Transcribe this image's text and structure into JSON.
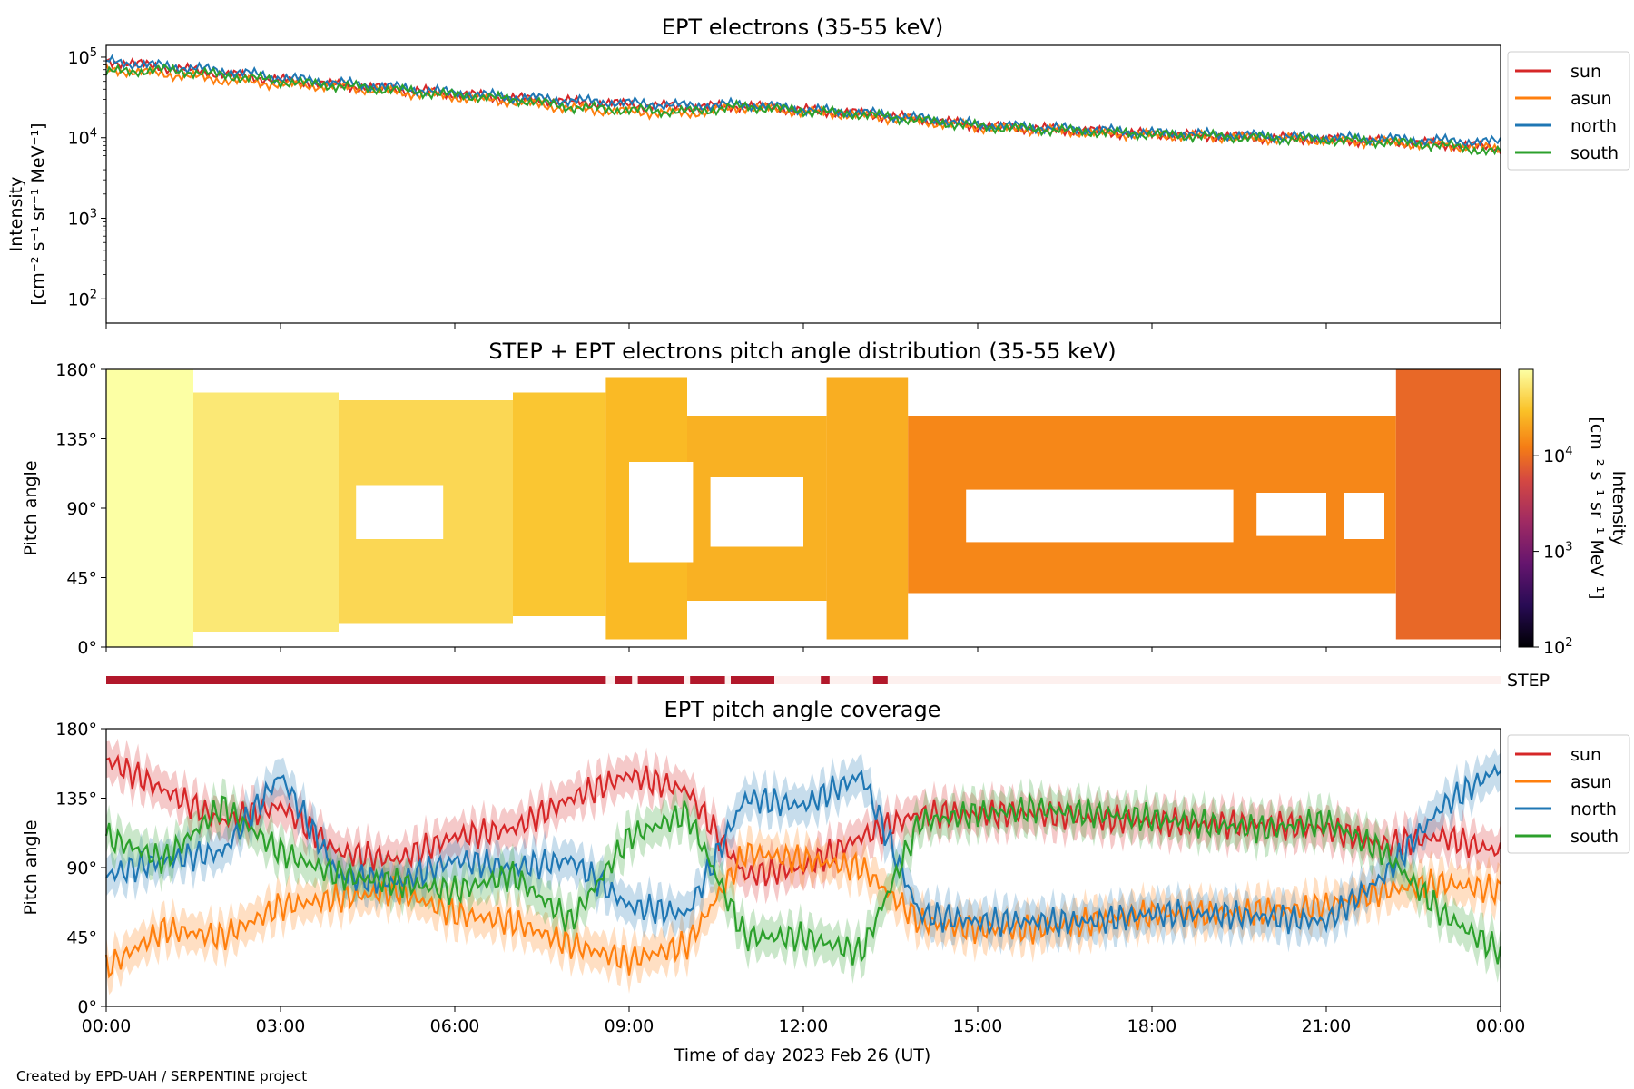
{
  "footer": {
    "credit": "Created by EPD-UAH / SERPENTINE project"
  },
  "chart_data": [
    {
      "type": "line",
      "title": "EPT electrons (35-55 keV)",
      "ylabel_line1": "Intensity",
      "ylabel_line2": "[cm⁻² s⁻¹ sr⁻¹ MeV⁻¹]",
      "yscale": "log",
      "ylim": [
        50,
        140000
      ],
      "y_ticks": [
        100,
        1000,
        10000,
        100000
      ],
      "y_tick_exponents": [
        "2",
        "3",
        "4",
        "5"
      ],
      "x": [
        0,
        1,
        2,
        3,
        4,
        5,
        6,
        7,
        8,
        9,
        10,
        11,
        12,
        13,
        14,
        15,
        16,
        17,
        18,
        19,
        20,
        21,
        22,
        23,
        24
      ],
      "xlim": [
        0,
        24
      ],
      "legend": "right-outside-top",
      "series": [
        {
          "name": "sun",
          "color": "#d62728",
          "values": [
            90000,
            75000,
            62000,
            52000,
            45000,
            40000,
            35000,
            31000,
            28000,
            26000,
            24000,
            25000,
            22000,
            20000,
            17000,
            14000,
            13000,
            12000,
            11000,
            10500,
            10000,
            9500,
            9000,
            8300,
            7500
          ]
        },
        {
          "name": "asun",
          "color": "#ff7f0e",
          "values": [
            70000,
            62000,
            52000,
            46000,
            43000,
            37000,
            32000,
            28000,
            23000,
            21000,
            20000,
            24000,
            21000,
            19000,
            16000,
            13500,
            12500,
            11500,
            10800,
            10300,
            9800,
            9300,
            8800,
            8100,
            7200
          ]
        },
        {
          "name": "north",
          "color": "#1f77b4",
          "values": [
            88000,
            78000,
            68000,
            56000,
            48000,
            42000,
            36000,
            32000,
            29000,
            27000,
            25000,
            26000,
            22500,
            20500,
            17500,
            14500,
            13500,
            12500,
            11500,
            11000,
            10500,
            10000,
            9700,
            9200,
            8800
          ]
        },
        {
          "name": "south",
          "color": "#2ca02c",
          "values": [
            65000,
            70000,
            60000,
            50000,
            44000,
            39000,
            34000,
            30000,
            24000,
            22000,
            21000,
            24500,
            21500,
            19500,
            16500,
            13800,
            12800,
            11800,
            11000,
            10400,
            9900,
            9400,
            8900,
            8000,
            6500
          ]
        }
      ]
    },
    {
      "type": "heatmap",
      "title": "STEP + EPT electrons pitch angle distribution (35-55 keV)",
      "ylabel": "Pitch angle",
      "y_ticks": [
        "0°",
        "45°",
        "90°",
        "135°",
        "180°"
      ],
      "ylim": [
        0,
        180
      ],
      "xlim": [
        0,
        24
      ],
      "colorbar": {
        "label_line1": "Intensity",
        "label_line2": "[cm⁻² s⁻¹ sr⁻¹ MeV⁻¹]",
        "scale": "log",
        "range": [
          100,
          80000
        ],
        "ticks": [
          100,
          1000,
          10000
        ],
        "tick_exponents": [
          "2",
          "3",
          "4"
        ],
        "colormap": "inferno"
      },
      "coverage_segments": [
        {
          "start": 0,
          "end": 1.5,
          "low": 0,
          "high": 180,
          "intensity": 80000
        },
        {
          "start": 1.5,
          "end": 4,
          "low": 10,
          "high": 165,
          "intensity": 55000
        },
        {
          "start": 4,
          "end": 7,
          "low": 15,
          "high": 160,
          "intensity": 42000
        },
        {
          "start": 7,
          "end": 8.6,
          "low": 20,
          "high": 165,
          "intensity": 32000
        },
        {
          "start": 8.6,
          "end": 10,
          "low": 5,
          "high": 175,
          "intensity": 27000
        },
        {
          "start": 10,
          "end": 12.4,
          "low": 30,
          "high": 150,
          "intensity": 24000
        },
        {
          "start": 12.4,
          "end": 13.8,
          "low": 5,
          "high": 175,
          "intensity": 23000
        },
        {
          "start": 13.8,
          "end": 22.2,
          "low": 35,
          "high": 150,
          "intensity": 14000
        },
        {
          "start": 22.2,
          "end": 24,
          "low": 5,
          "high": 180,
          "intensity": 9000
        }
      ],
      "gap_segments": [
        {
          "start": 4.3,
          "end": 5.8,
          "low": 70,
          "high": 105
        },
        {
          "start": 9.0,
          "end": 10.1,
          "low": 55,
          "high": 120
        },
        {
          "start": 10.4,
          "end": 12.0,
          "low": 65,
          "high": 110
        },
        {
          "start": 14.8,
          "end": 19.4,
          "low": 68,
          "high": 102
        },
        {
          "start": 19.8,
          "end": 21.0,
          "low": 72,
          "high": 100
        },
        {
          "start": 21.3,
          "end": 22.0,
          "low": 70,
          "high": 100
        }
      ],
      "step_label": "STEP",
      "step_availability": [
        {
          "start": 0,
          "end": 8.6
        },
        {
          "start": 8.75,
          "end": 9.05
        },
        {
          "start": 9.15,
          "end": 9.95
        },
        {
          "start": 10.05,
          "end": 10.65
        },
        {
          "start": 10.75,
          "end": 11.5
        },
        {
          "start": 12.3,
          "end": 12.45
        },
        {
          "start": 13.2,
          "end": 13.45
        }
      ]
    },
    {
      "type": "line",
      "title": "EPT pitch angle coverage",
      "ylabel": "Pitch angle",
      "xlabel": "Time of day 2023 Feb 26 (UT)",
      "y_ticks": [
        "0°",
        "45°",
        "90°",
        "135°",
        "180°"
      ],
      "ylim": [
        0,
        180
      ],
      "x_tick_labels": [
        "00:00",
        "03:00",
        "06:00",
        "09:00",
        "12:00",
        "15:00",
        "18:00",
        "21:00",
        "00:00"
      ],
      "x": [
        0,
        1,
        2,
        3,
        4,
        5,
        6,
        7,
        8,
        9,
        10,
        11,
        12,
        13,
        14,
        15,
        16,
        17,
        18,
        19,
        20,
        21,
        22,
        23,
        24
      ],
      "xlim": [
        0,
        24
      ],
      "legend": "right-outside-top",
      "series": [
        {
          "name": "sun",
          "color": "#d62728",
          "values": [
            160,
            140,
            120,
            130,
            100,
            95,
            110,
            115,
            135,
            150,
            140,
            85,
            90,
            110,
            125,
            125,
            125,
            122,
            120,
            118,
            118,
            115,
            105,
            110,
            100
          ]
        },
        {
          "name": "asun",
          "color": "#ff7f0e",
          "values": [
            25,
            50,
            45,
            65,
            70,
            75,
            60,
            55,
            40,
            30,
            40,
            100,
            95,
            90,
            55,
            50,
            50,
            55,
            60,
            60,
            62,
            65,
            75,
            80,
            75
          ]
        },
        {
          "name": "north",
          "color": "#1f77b4",
          "values": [
            85,
            95,
            100,
            150,
            85,
            80,
            95,
            90,
            95,
            65,
            60,
            135,
            130,
            150,
            60,
            55,
            55,
            55,
            60,
            60,
            58,
            55,
            85,
            130,
            155
          ]
        },
        {
          "name": "south",
          "color": "#2ca02c",
          "values": [
            110,
            95,
            130,
            100,
            85,
            80,
            75,
            85,
            55,
            110,
            125,
            45,
            45,
            35,
            120,
            125,
            128,
            125,
            122,
            118,
            115,
            120,
            100,
            60,
            35
          ]
        }
      ]
    }
  ]
}
